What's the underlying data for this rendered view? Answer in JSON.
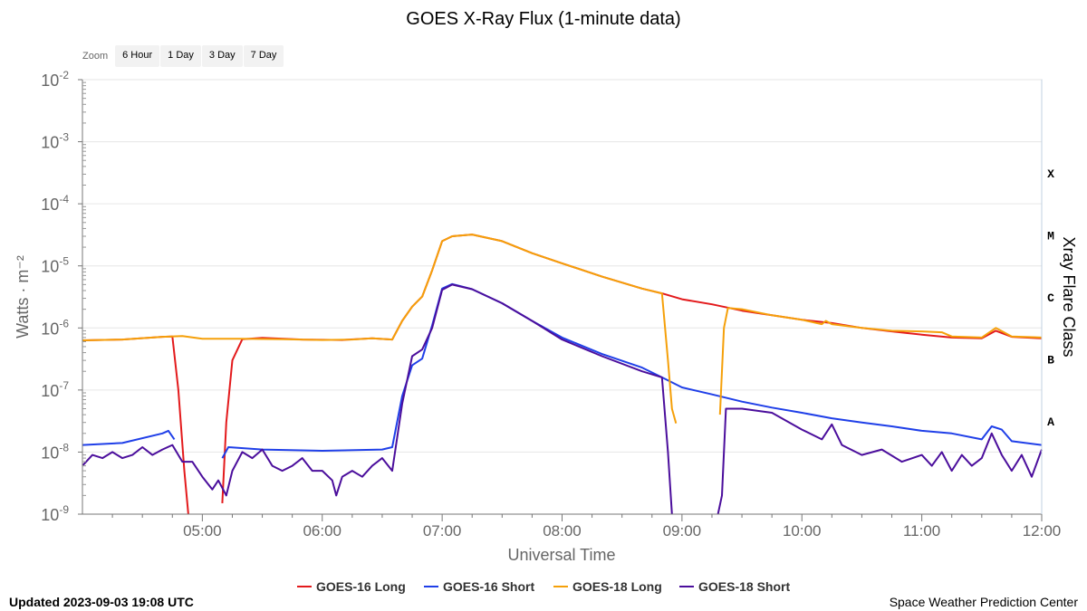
{
  "chart_data": {
    "type": "line",
    "title": "GOES X-Ray Flux (1-minute data)",
    "xlabel": "Universal Time",
    "ylabel": "Watts · m⁻²",
    "y2label": "Xray Flare Class",
    "yscale": "log",
    "ylim": [
      1e-09,
      0.01
    ],
    "xlim": [
      "04:00",
      "12:00"
    ],
    "x_ticks": [
      "05:00",
      "06:00",
      "07:00",
      "08:00",
      "09:00",
      "10:00",
      "11:00",
      "12:00"
    ],
    "y_ticks": [
      {
        "base": "10",
        "exp": "-2"
      },
      {
        "base": "10",
        "exp": "-3"
      },
      {
        "base": "10",
        "exp": "-4"
      },
      {
        "base": "10",
        "exp": "-5"
      },
      {
        "base": "10",
        "exp": "-6"
      },
      {
        "base": "10",
        "exp": "-7"
      },
      {
        "base": "10",
        "exp": "-8"
      },
      {
        "base": "10",
        "exp": "-9"
      }
    ],
    "flare_classes": [
      "X",
      "M",
      "C",
      "B",
      "A"
    ],
    "grid": true,
    "legend_position": "bottom-center",
    "series": [
      {
        "name": "GOES-16 Long",
        "color": "#e31a1c",
        "points": [
          [
            "04:00",
            6.3e-07
          ],
          [
            "04:20",
            6.5e-07
          ],
          [
            "04:40",
            7.2e-07
          ],
          [
            "04:45",
            7.3e-07
          ],
          [
            "04:48",
            1e-07
          ],
          [
            "04:51",
            5e-09
          ],
          [
            "04:53",
            1e-09
          ],
          null,
          [
            "05:10",
            1.5e-09
          ],
          [
            "05:12",
            3e-08
          ],
          [
            "05:15",
            3e-07
          ],
          [
            "05:20",
            6.6e-07
          ],
          [
            "05:30",
            6.9e-07
          ],
          [
            "05:50",
            6.5e-07
          ],
          [
            "06:10",
            6.4e-07
          ],
          [
            "06:25",
            6.8e-07
          ],
          [
            "06:35",
            6.5e-07
          ],
          [
            "06:40",
            1.3e-06
          ],
          [
            "06:45",
            2.2e-06
          ],
          [
            "06:50",
            3.2e-06
          ],
          [
            "06:55",
            8.5e-06
          ],
          [
            "07:00",
            2.5e-05
          ],
          [
            "07:05",
            3e-05
          ],
          [
            "07:15",
            3.2e-05
          ],
          [
            "07:30",
            2.5e-05
          ],
          [
            "07:45",
            1.6e-05
          ],
          [
            "08:00",
            1.1e-05
          ],
          [
            "08:20",
            6.7e-06
          ],
          [
            "08:40",
            4.3e-06
          ],
          [
            "08:50",
            3.6e-06
          ],
          [
            "09:00",
            2.9e-06
          ],
          [
            "09:15",
            2.4e-06
          ],
          [
            "09:30",
            1.9e-06
          ],
          [
            "09:45",
            1.6e-06
          ],
          [
            "10:00",
            1.35e-06
          ],
          [
            "10:15",
            1.2e-06
          ],
          [
            "10:30",
            1e-06
          ],
          [
            "10:45",
            8.8e-07
          ],
          [
            "11:00",
            7.8e-07
          ],
          [
            "11:15",
            7e-07
          ],
          [
            "11:30",
            6.8e-07
          ],
          [
            "11:37",
            9e-07
          ],
          [
            "11:45",
            7.2e-07
          ],
          [
            "12:00",
            6.8e-07
          ]
        ]
      },
      {
        "name": "GOES-16 Short",
        "color": "#1f3fe8",
        "points": [
          [
            "04:00",
            1.3e-08
          ],
          [
            "04:20",
            1.4e-08
          ],
          [
            "04:40",
            2e-08
          ],
          [
            "04:43",
            2.2e-08
          ],
          [
            "04:46",
            1.6e-08
          ],
          null,
          [
            "05:10",
            8e-09
          ],
          [
            "05:13",
            1.2e-08
          ],
          [
            "05:30",
            1.1e-08
          ],
          [
            "06:00",
            1.05e-08
          ],
          [
            "06:30",
            1.1e-08
          ],
          [
            "06:35",
            1.2e-08
          ],
          [
            "06:40",
            8e-08
          ],
          [
            "06:45",
            2.5e-07
          ],
          [
            "06:50",
            3.2e-07
          ],
          [
            "06:55",
            1.1e-06
          ],
          [
            "07:00",
            4.3e-06
          ],
          [
            "07:05",
            5.1e-06
          ],
          [
            "07:15",
            4.2e-06
          ],
          [
            "07:30",
            2.5e-06
          ],
          [
            "07:45",
            1.3e-06
          ],
          [
            "08:00",
            7e-07
          ],
          [
            "08:20",
            3.8e-07
          ],
          [
            "08:40",
            2.3e-07
          ],
          [
            "08:50",
            1.6e-07
          ],
          [
            "09:00",
            1.1e-07
          ],
          [
            "09:15",
            8.5e-08
          ],
          [
            "09:30",
            6.5e-08
          ],
          [
            "09:45",
            5.2e-08
          ],
          [
            "10:00",
            4.3e-08
          ],
          [
            "10:15",
            3.5e-08
          ],
          [
            "10:30",
            3e-08
          ],
          [
            "10:45",
            2.6e-08
          ],
          [
            "11:00",
            2.2e-08
          ],
          [
            "11:15",
            2e-08
          ],
          [
            "11:30",
            1.6e-08
          ],
          [
            "11:35",
            2.6e-08
          ],
          [
            "11:40",
            2.3e-08
          ],
          [
            "11:45",
            1.5e-08
          ],
          [
            "12:00",
            1.3e-08
          ]
        ]
      },
      {
        "name": "GOES-18 Long",
        "color": "#f5a00a",
        "points": [
          [
            "04:00",
            6.3e-07
          ],
          [
            "04:20",
            6.5e-07
          ],
          [
            "04:40",
            7.2e-07
          ],
          [
            "04:50",
            7.4e-07
          ],
          [
            "05:00",
            6.7e-07
          ],
          [
            "05:20",
            6.7e-07
          ],
          [
            "05:40",
            6.6e-07
          ],
          [
            "06:00",
            6.4e-07
          ],
          [
            "06:15",
            6.5e-07
          ],
          [
            "06:25",
            6.8e-07
          ],
          [
            "06:35",
            6.5e-07
          ],
          [
            "06:40",
            1.3e-06
          ],
          [
            "06:45",
            2.2e-06
          ],
          [
            "06:50",
            3.2e-06
          ],
          [
            "06:55",
            8.5e-06
          ],
          [
            "07:00",
            2.5e-05
          ],
          [
            "07:05",
            3e-05
          ],
          [
            "07:15",
            3.2e-05
          ],
          [
            "07:30",
            2.5e-05
          ],
          [
            "07:45",
            1.6e-05
          ],
          [
            "08:00",
            1.1e-05
          ],
          [
            "08:20",
            6.7e-06
          ],
          [
            "08:40",
            4.3e-06
          ],
          [
            "08:50",
            3.6e-06
          ],
          [
            "08:53",
            3e-07
          ],
          [
            "08:55",
            5e-08
          ],
          [
            "08:57",
            2.9e-08
          ],
          null,
          [
            "09:19",
            4e-08
          ],
          [
            "09:21",
            1e-06
          ],
          [
            "09:23",
            2.1e-06
          ],
          [
            "09:30",
            2e-06
          ],
          [
            "09:45",
            1.6e-06
          ],
          [
            "10:00",
            1.35e-06
          ],
          [
            "10:10",
            1.15e-06
          ],
          [
            "10:12",
            1.3e-06
          ],
          [
            "10:15",
            1.15e-06
          ],
          [
            "10:30",
            1e-06
          ],
          [
            "10:45",
            9e-07
          ],
          [
            "11:00",
            8.8e-07
          ],
          [
            "11:10",
            8.5e-07
          ],
          [
            "11:15",
            7.3e-07
          ],
          [
            "11:30",
            7e-07
          ],
          [
            "11:37",
            1e-06
          ],
          [
            "11:45",
            7.3e-07
          ],
          [
            "12:00",
            7e-07
          ]
        ]
      },
      {
        "name": "GOES-18 Short",
        "color": "#4b0e9c",
        "points": [
          [
            "04:00",
            6e-09
          ],
          [
            "04:05",
            9e-09
          ],
          [
            "04:10",
            8e-09
          ],
          [
            "04:15",
            1e-08
          ],
          [
            "04:20",
            8e-09
          ],
          [
            "04:25",
            9e-09
          ],
          [
            "04:30",
            1.2e-08
          ],
          [
            "04:35",
            9e-09
          ],
          [
            "04:40",
            1.1e-08
          ],
          [
            "04:45",
            1.3e-08
          ],
          [
            "04:50",
            7e-09
          ],
          [
            "04:55",
            7e-09
          ],
          [
            "05:00",
            4e-09
          ],
          [
            "05:05",
            2.5e-09
          ],
          [
            "05:08",
            3.5e-09
          ],
          [
            "05:12",
            2e-09
          ],
          [
            "05:15",
            5e-09
          ],
          [
            "05:20",
            1e-08
          ],
          [
            "05:25",
            8e-09
          ],
          [
            "05:30",
            1.1e-08
          ],
          [
            "05:35",
            6e-09
          ],
          [
            "05:40",
            5e-09
          ],
          [
            "05:45",
            6e-09
          ],
          [
            "05:50",
            8e-09
          ],
          [
            "05:55",
            5e-09
          ],
          [
            "06:00",
            5e-09
          ],
          [
            "06:05",
            3.5e-09
          ],
          [
            "06:07",
            2e-09
          ],
          [
            "06:10",
            4e-09
          ],
          [
            "06:15",
            5e-09
          ],
          [
            "06:20",
            4e-09
          ],
          [
            "06:25",
            6e-09
          ],
          [
            "06:30",
            8e-09
          ],
          [
            "06:35",
            5e-09
          ],
          [
            "06:40",
            6e-08
          ],
          [
            "06:45",
            3.5e-07
          ],
          [
            "06:50",
            4.5e-07
          ],
          [
            "06:55",
            1e-06
          ],
          [
            "07:00",
            4.1e-06
          ],
          [
            "07:05",
            5e-06
          ],
          [
            "07:15",
            4.2e-06
          ],
          [
            "07:30",
            2.5e-06
          ],
          [
            "07:45",
            1.3e-06
          ],
          [
            "08:00",
            6.5e-07
          ],
          [
            "08:20",
            3.5e-07
          ],
          [
            "08:40",
            2e-07
          ],
          [
            "08:50",
            1.6e-07
          ],
          [
            "08:53",
            1e-08
          ],
          [
            "08:55",
            1e-09
          ],
          null,
          [
            "09:18",
            1e-09
          ],
          [
            "09:20",
            2e-09
          ],
          [
            "09:22",
            5e-08
          ],
          [
            "09:30",
            5e-08
          ],
          [
            "09:45",
            4.3e-08
          ],
          [
            "10:00",
            2.3e-08
          ],
          [
            "10:10",
            1.6e-08
          ],
          [
            "10:15",
            2.8e-08
          ],
          [
            "10:20",
            1.3e-08
          ],
          [
            "10:30",
            9e-09
          ],
          [
            "10:40",
            1.1e-08
          ],
          [
            "10:50",
            7e-09
          ],
          [
            "11:00",
            9e-09
          ],
          [
            "11:05",
            6e-09
          ],
          [
            "11:10",
            1e-08
          ],
          [
            "11:15",
            5e-09
          ],
          [
            "11:20",
            9e-09
          ],
          [
            "11:25",
            6e-09
          ],
          [
            "11:30",
            8e-09
          ],
          [
            "11:35",
            2e-08
          ],
          [
            "11:40",
            9e-09
          ],
          [
            "11:45",
            5e-09
          ],
          [
            "11:50",
            9e-09
          ],
          [
            "11:55",
            4e-09
          ],
          [
            "12:00",
            1.1e-08
          ]
        ]
      }
    ]
  },
  "zoom": {
    "label": "Zoom",
    "buttons": [
      "6 Hour",
      "1 Day",
      "3 Day",
      "7 Day"
    ]
  },
  "footer": {
    "updated": "Updated 2023-09-03 19:08 UTC",
    "credit": "Space Weather Prediction Center"
  }
}
